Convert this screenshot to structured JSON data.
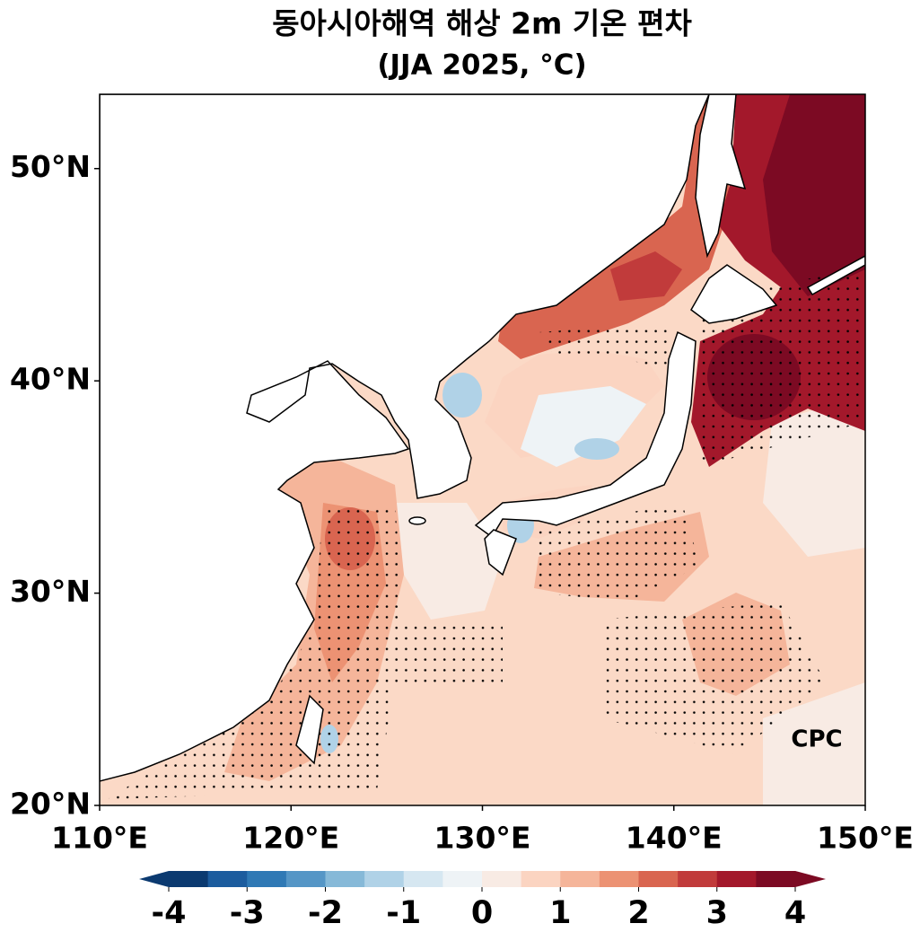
{
  "chart_data": {
    "type": "contour",
    "title": "동아시아해역 해상 2m 기온 편차",
    "subtitle": "(JJA 2025, °C)",
    "xlim": [
      110,
      150
    ],
    "ylim": [
      20,
      53.5
    ],
    "xticks": [
      {
        "value": 110,
        "label": "110°E"
      },
      {
        "value": 120,
        "label": "120°E"
      },
      {
        "value": 130,
        "label": "130°E"
      },
      {
        "value": 140,
        "label": "140°E"
      },
      {
        "value": 150,
        "label": "150°E"
      }
    ],
    "yticks": [
      {
        "value": 20,
        "label": "20°N"
      },
      {
        "value": 30,
        "label": "30°N"
      },
      {
        "value": 40,
        "label": "40°N"
      },
      {
        "value": 50,
        "label": "50°N"
      }
    ],
    "colorbar": {
      "levels": [
        -4,
        -3.5,
        -3,
        -2.5,
        -2,
        -1.5,
        -1,
        -0.5,
        0,
        0.5,
        1,
        1.5,
        2,
        2.5,
        3,
        3.5,
        4
      ],
      "colors": [
        "#0b3a70",
        "#1c5c9e",
        "#2f79b5",
        "#5596c6",
        "#86b9d8",
        "#b0d2e7",
        "#d6e7f1",
        "#eef3f6",
        "#f8ebe4",
        "#fbd4c1",
        "#f5b59a",
        "#ec9273",
        "#d96550",
        "#c13b3b",
        "#a3182b",
        "#7c0a23"
      ],
      "ticks": [
        -4,
        -3,
        -2,
        -1,
        0,
        1,
        2,
        3,
        4
      ]
    },
    "logo": "CPC"
  }
}
